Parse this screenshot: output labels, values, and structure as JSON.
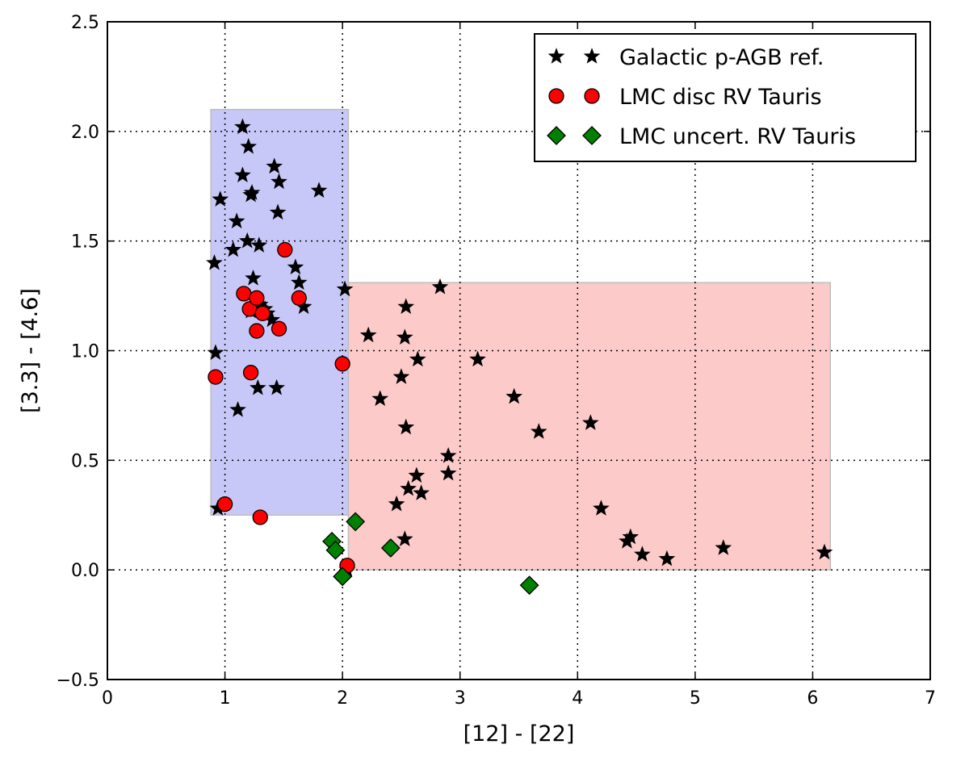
{
  "chart_data": {
    "type": "scatter",
    "title": "",
    "xlabel": "[12] - [22]",
    "ylabel": "[3.3] - [4.6]",
    "xlim": [
      0,
      7
    ],
    "ylim": [
      -0.5,
      2.5
    ],
    "grid": true,
    "x_ticks": [
      "0",
      "1",
      "2",
      "3",
      "4",
      "5",
      "6",
      "7"
    ],
    "y_ticks": [
      "−0.5",
      "0.0",
      "0.5",
      "1.0",
      "1.5",
      "2.0",
      "2.5"
    ],
    "regions": [
      {
        "name": "blue-region",
        "color": "#c8c8f8",
        "x": [
          0.88,
          2.05
        ],
        "y": [
          0.25,
          2.1
        ]
      },
      {
        "name": "pink-region",
        "color": "#fdcaca",
        "x": [
          2.05,
          6.15
        ],
        "y": [
          0.0,
          1.31
        ]
      }
    ],
    "legend_position": "top-right",
    "series": [
      {
        "name": "Galactic p-AGB ref.",
        "marker": "star",
        "color": "#000000",
        "points": [
          [
            0.91,
            1.4
          ],
          [
            0.92,
            0.99
          ],
          [
            0.96,
            1.69
          ],
          [
            0.94,
            0.28
          ],
          [
            1.07,
            1.46
          ],
          [
            1.1,
            1.59
          ],
          [
            1.11,
            0.73
          ],
          [
            1.15,
            2.02
          ],
          [
            1.15,
            1.8
          ],
          [
            1.2,
            1.93
          ],
          [
            1.19,
            1.5
          ],
          [
            1.23,
            1.72
          ],
          [
            1.22,
            1.71
          ],
          [
            1.24,
            1.33
          ],
          [
            1.22,
            1.18
          ],
          [
            1.29,
            1.48
          ],
          [
            1.3,
            1.21
          ],
          [
            1.28,
            0.83
          ],
          [
            1.34,
            1.19
          ],
          [
            1.36,
            1.17
          ],
          [
            1.4,
            1.14
          ],
          [
            1.42,
            1.84
          ],
          [
            1.46,
            1.77
          ],
          [
            1.45,
            1.63
          ],
          [
            1.44,
            0.83
          ],
          [
            1.6,
            1.38
          ],
          [
            1.63,
            1.31
          ],
          [
            1.67,
            1.2
          ],
          [
            1.8,
            1.73
          ],
          [
            2.02,
            1.28
          ],
          [
            2.04,
            0.0
          ],
          [
            2.22,
            1.07
          ],
          [
            2.32,
            0.78
          ],
          [
            2.46,
            0.3
          ],
          [
            2.5,
            0.88
          ],
          [
            2.53,
            1.06
          ],
          [
            2.54,
            1.2
          ],
          [
            2.54,
            0.65
          ],
          [
            2.53,
            0.14
          ],
          [
            2.56,
            0.37
          ],
          [
            2.63,
            0.43
          ],
          [
            2.64,
            0.96
          ],
          [
            2.67,
            0.35
          ],
          [
            2.83,
            1.29
          ],
          [
            2.9,
            0.52
          ],
          [
            2.9,
            0.44
          ],
          [
            3.15,
            0.96
          ],
          [
            3.46,
            0.79
          ],
          [
            3.67,
            0.63
          ],
          [
            4.11,
            0.67
          ],
          [
            4.2,
            0.28
          ],
          [
            4.42,
            0.13
          ],
          [
            4.45,
            0.15
          ],
          [
            4.55,
            0.07
          ],
          [
            4.76,
            0.05
          ],
          [
            5.24,
            0.1
          ],
          [
            6.1,
            0.08
          ]
        ]
      },
      {
        "name": "LMC disc RV Tauris",
        "marker": "circle",
        "color": "#ff0000",
        "points": [
          [
            0.92,
            0.88
          ],
          [
            1.0,
            0.3
          ],
          [
            1.16,
            1.26
          ],
          [
            1.21,
            1.19
          ],
          [
            1.22,
            0.9
          ],
          [
            1.27,
            1.24
          ],
          [
            1.27,
            1.09
          ],
          [
            1.3,
            0.24
          ],
          [
            1.32,
            1.17
          ],
          [
            1.46,
            1.1
          ],
          [
            1.51,
            1.46
          ],
          [
            1.63,
            1.24
          ],
          [
            2.0,
            0.94
          ],
          [
            2.04,
            0.02
          ]
        ]
      },
      {
        "name": "LMC uncert. RV Tauris",
        "marker": "diamond",
        "color": "#008000",
        "points": [
          [
            1.91,
            0.13
          ],
          [
            1.94,
            0.09
          ],
          [
            2.0,
            -0.03
          ],
          [
            2.11,
            0.22
          ],
          [
            2.41,
            0.1
          ],
          [
            3.59,
            -0.07
          ]
        ]
      }
    ]
  }
}
